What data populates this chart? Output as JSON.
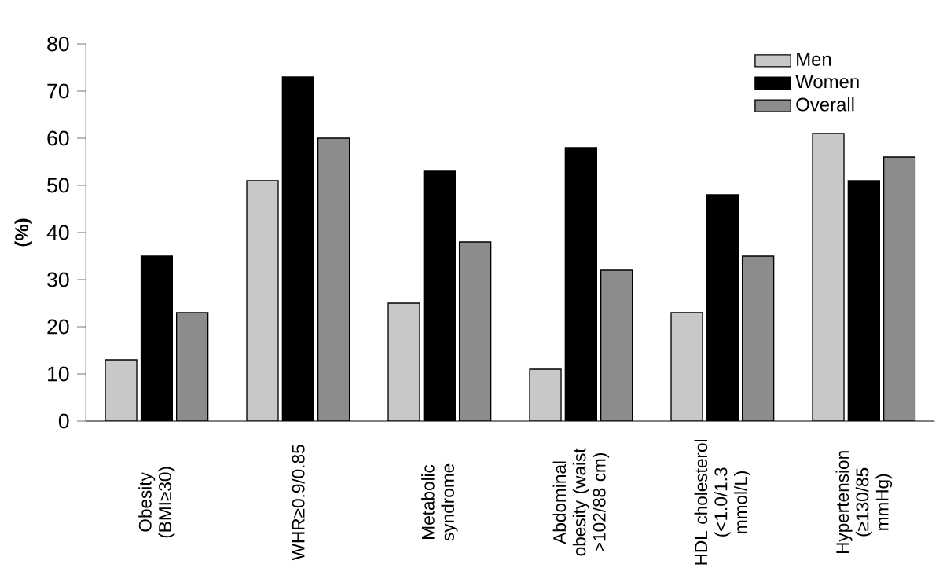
{
  "chart_data": {
    "type": "bar",
    "ylabel": "(%)",
    "categories": [
      "Obesity (BMI≥30)",
      "WHR≥0.9/0.85",
      "Metabolic syndrome",
      "Abdominal obesity (waist >102/88 cm)",
      "HDL cholesterol (<1.0/1.3 mmol/L)",
      "Hypertension (≥130/85 mmHg)"
    ],
    "series": [
      {
        "name": "Men",
        "color": "#c8c8c8",
        "values": [
          13,
          51,
          25,
          11,
          23,
          61
        ]
      },
      {
        "name": "Women",
        "color": "#000000",
        "values": [
          35,
          73,
          53,
          58,
          48,
          51
        ]
      },
      {
        "name": "Overall",
        "color": "#8c8c8c",
        "values": [
          23,
          60,
          38,
          32,
          35,
          56
        ]
      }
    ],
    "ylim": [
      0,
      80
    ],
    "yticks": [
      0,
      10,
      20,
      30,
      40,
      50,
      60,
      70,
      80
    ],
    "legend": "top right",
    "grid": false
  }
}
